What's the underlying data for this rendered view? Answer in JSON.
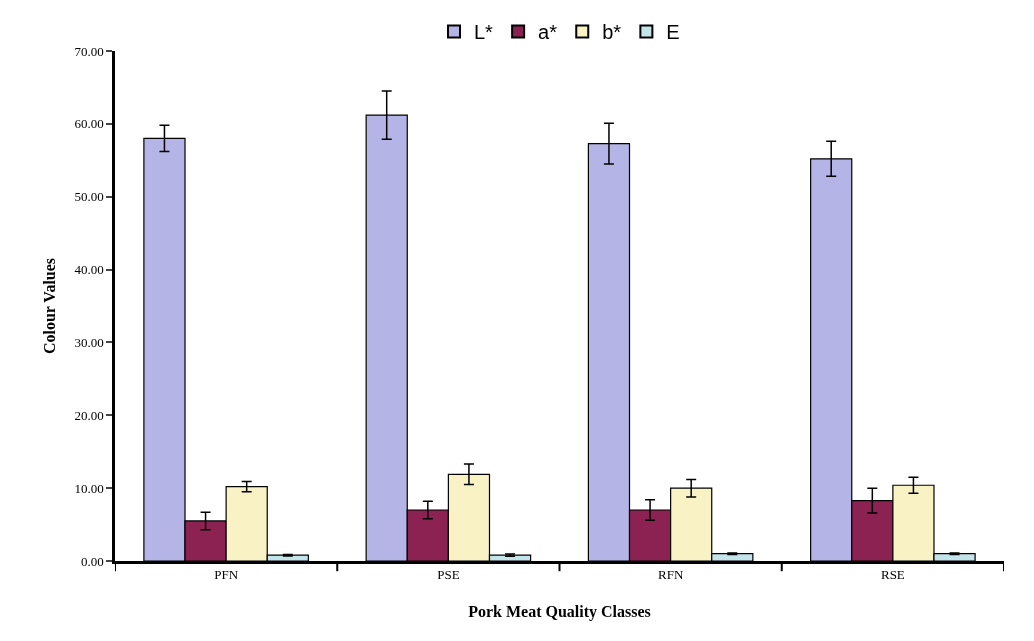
{
  "chart_data": {
    "type": "bar",
    "xlabel": "Pork Meat Quality Classes",
    "ylabel": "Colour Values",
    "categories": [
      "PFN",
      "PSE",
      "RFN",
      "RSE"
    ],
    "series": [
      {
        "name": "L*",
        "color": "#b4b4e6",
        "values": [
          58.0,
          61.2,
          57.3,
          55.2
        ],
        "errors": [
          1.8,
          3.3,
          2.8,
          2.4
        ]
      },
      {
        "name": "a*",
        "color": "#8b2252",
        "values": [
          5.5,
          7.0,
          7.0,
          8.3
        ],
        "errors": [
          1.2,
          1.2,
          1.4,
          1.7
        ]
      },
      {
        "name": "b*",
        "color": "#f8f2c4",
        "values": [
          10.2,
          11.9,
          10.0,
          10.4
        ],
        "errors": [
          0.7,
          1.4,
          1.2,
          1.1
        ]
      },
      {
        "name": "E",
        "color": "#c4e4ec",
        "values": [
          0.8,
          0.8,
          1.0,
          1.0
        ],
        "errors": [
          0.1,
          0.15,
          0.1,
          0.1
        ]
      }
    ],
    "ylim": [
      0,
      70
    ],
    "yticks": [
      {
        "value": 0,
        "label": "0.00"
      },
      {
        "value": 10,
        "label": "10.00"
      },
      {
        "value": 20,
        "label": "20.00"
      },
      {
        "value": 30,
        "label": "30.00"
      },
      {
        "value": 40,
        "label": "40.00"
      },
      {
        "value": 50,
        "label": "50.00"
      },
      {
        "value": 60,
        "label": "60.00"
      },
      {
        "value": 70,
        "label": "70.00"
      }
    ],
    "legend": "top"
  }
}
